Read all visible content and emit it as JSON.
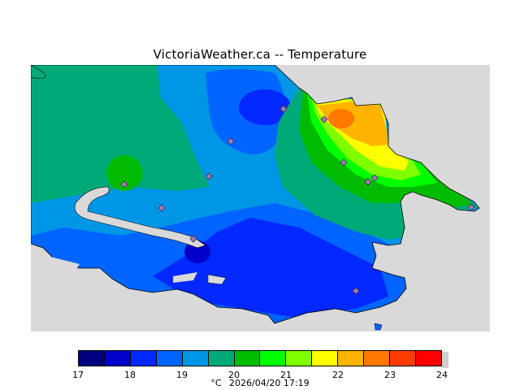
{
  "title": "VictoriaWeather.ca -- Temperature",
  "footer": {
    "unit": "°C",
    "timestamp": "2026/04/20 17:19"
  },
  "legend": {
    "ticks": [
      "17",
      "18",
      "19",
      "20",
      "21",
      "22",
      "23",
      "24"
    ],
    "colors": [
      "#000080",
      "#0000c8",
      "#0028ff",
      "#0064ff",
      "#0096e6",
      "#00aa78",
      "#00bb00",
      "#00ff00",
      "#80ff00",
      "#ffff00",
      "#ffb400",
      "#ff7800",
      "#ff3c00",
      "#ff0000"
    ]
  },
  "map": {
    "water_color": "#d9d9d9",
    "station_count": 14
  }
}
